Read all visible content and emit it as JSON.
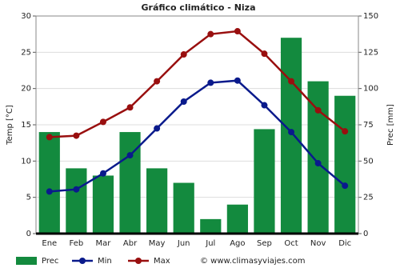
{
  "chart_data": {
    "type": "bar",
    "title": "Gráfico climático - Niza",
    "y_label": "Temp [°C]",
    "y2_label": "Prec [mm]",
    "source": "© www.climasyviajes.com",
    "categories": [
      "Ene",
      "Feb",
      "Mar",
      "Abr",
      "May",
      "Jun",
      "Jul",
      "Ago",
      "Sep",
      "Oct",
      "Nov",
      "Dic"
    ],
    "series": [
      {
        "name": "Prec",
        "type": "bar",
        "axis": "y2",
        "color": "#138a3e",
        "values": [
          70,
          45,
          40,
          70,
          45,
          35,
          10,
          20,
          72,
          135,
          105,
          95
        ]
      },
      {
        "name": "Min",
        "type": "line",
        "color": "#0a1a8c",
        "values": [
          5.8,
          6.1,
          8.3,
          10.8,
          14.5,
          18.2,
          20.8,
          21.1,
          17.7,
          14.0,
          9.7,
          6.6
        ]
      },
      {
        "name": "Max",
        "type": "line",
        "color": "#990f0f",
        "values": [
          13.3,
          13.5,
          15.4,
          17.4,
          21.0,
          24.7,
          27.5,
          27.9,
          24.8,
          21.0,
          17.0,
          14.1
        ]
      }
    ],
    "ylim": [
      0,
      30
    ],
    "yticks": [
      0,
      5,
      10,
      15,
      20,
      25,
      30
    ],
    "y2lim": [
      0,
      150
    ],
    "y2ticks": [
      0,
      25,
      50,
      75,
      100,
      125,
      150
    ],
    "grid": true
  }
}
